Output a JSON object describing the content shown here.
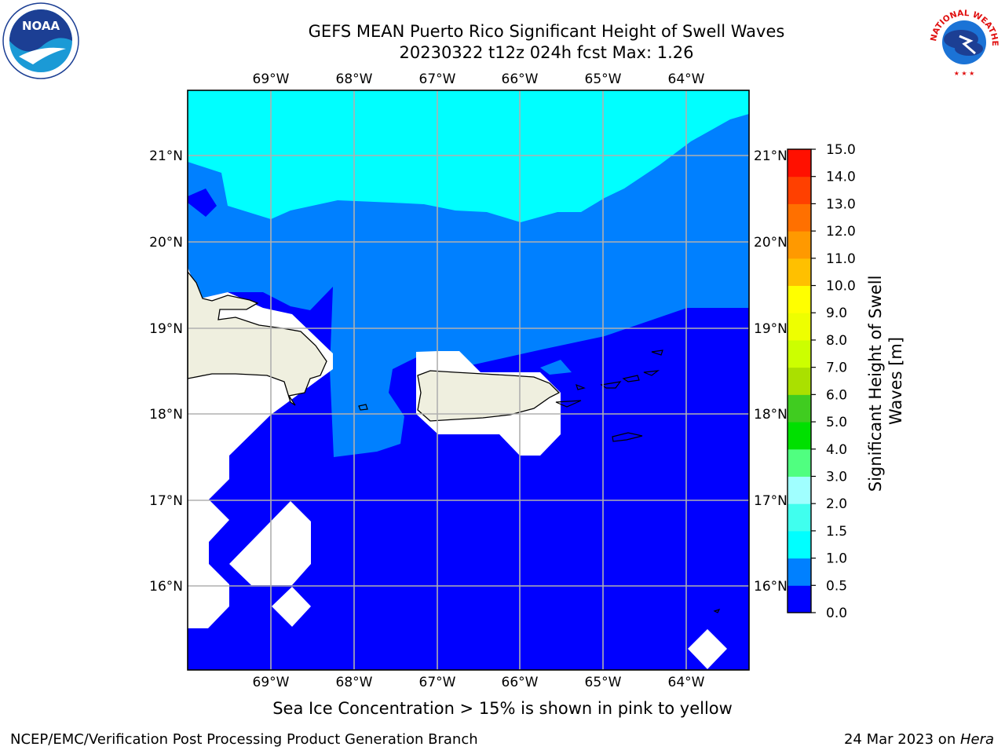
{
  "title": "GEFS MEAN Puerto Rico Significant Height of Swell Waves",
  "subtitle": "20230322 t12z 024h fcst   Max: 1.26",
  "lon_labels": [
    "69°W",
    "68°W",
    "67°W",
    "66°W",
    "65°W",
    "64°W"
  ],
  "lat_labels": [
    "21°N",
    "20°N",
    "19°N",
    "18°N",
    "17°N",
    "16°N"
  ],
  "colorbar": {
    "label_line1": "Significant Height of Swell",
    "label_line2": "Waves [m]",
    "ticks": [
      "0.0",
      "0.5",
      "1.0",
      "1.5",
      "2.0",
      "3.0",
      "4.0",
      "5.0",
      "6.0",
      "7.0",
      "8.0",
      "9.0",
      "10.0",
      "11.0",
      "12.0",
      "13.0",
      "14.0",
      "15.0"
    ],
    "colors": [
      "#0000ff",
      "#0080ff",
      "#00ffff",
      "#40ffee",
      "#a0ffff",
      "#50ff80",
      "#00e000",
      "#40cc20",
      "#aae000",
      "#ccff00",
      "#eeff00",
      "#ffff00",
      "#ffc000",
      "#ff9900",
      "#ff7000",
      "#ff4000",
      "#ff1000"
    ]
  },
  "footer_left": "NCEP/EMC/Verification Post Processing Product Generation Branch",
  "footer_right_prefix": "24 Mar 2023 on ",
  "footer_right_host": "Hera",
  "ice_note": "Sea Ice Concentration > 15% is shown in pink to yellow",
  "logos": {
    "noaa": "NOAA",
    "nws": "NATIONAL WEATHER SERVICE"
  }
}
